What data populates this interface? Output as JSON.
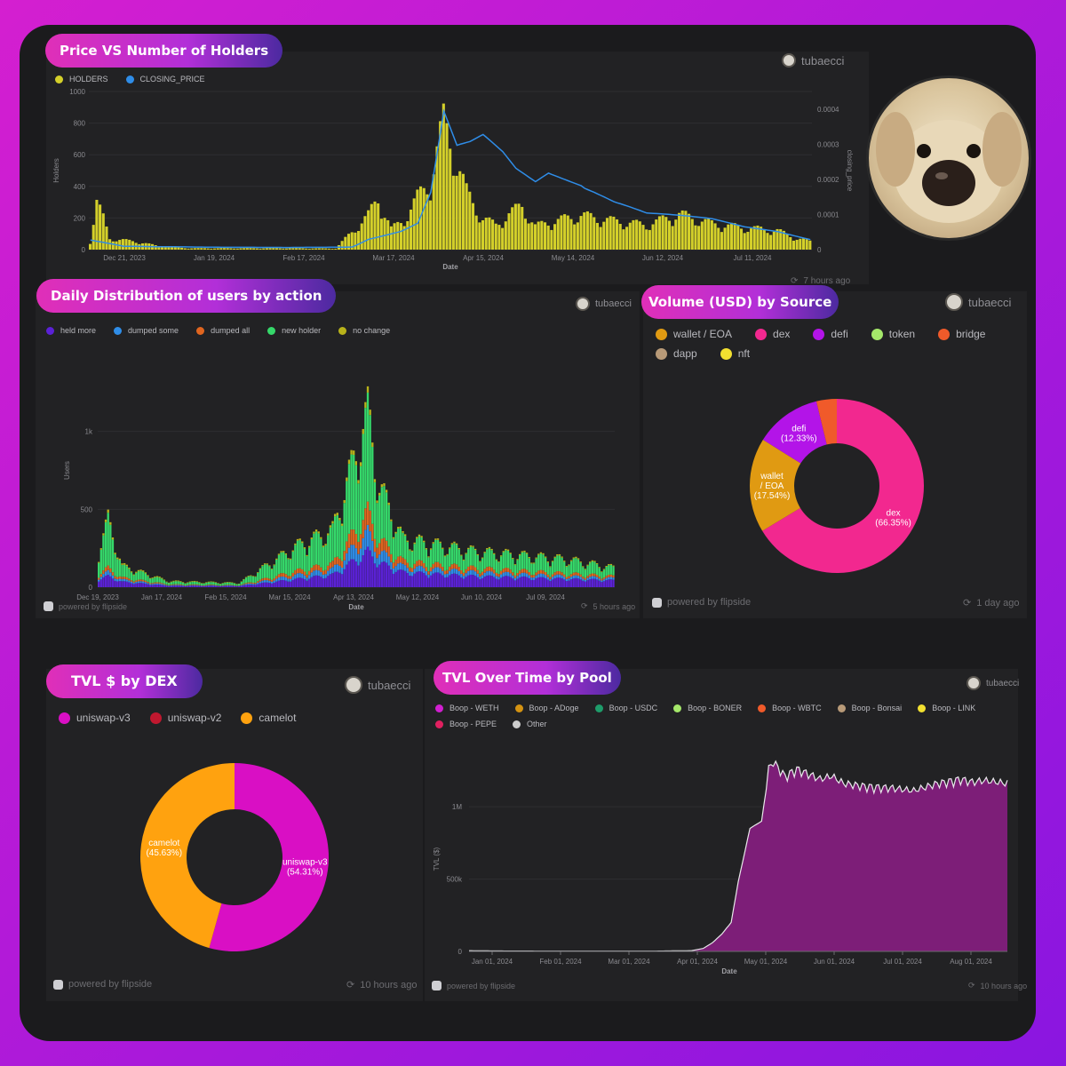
{
  "colors": {
    "holders": "#d4d02a",
    "closing_price": "#2f8de8",
    "held_more": "#5b21d6",
    "dumped_some": "#2f8de8",
    "dumped_all": "#e0651f",
    "new_holder": "#35d86a",
    "no_change": "#b8b21a",
    "tvl_area": "#7d1e78"
  },
  "panel1": {
    "title": "Price VS Number of Holders",
    "user": "tubaecci",
    "legend": [
      {
        "label": "HOLDERS",
        "color": "#d4d02a"
      },
      {
        "label": "CLOSING_PRICE",
        "color": "#2f8de8"
      }
    ],
    "footer_time": "7 hours ago"
  },
  "panel2": {
    "title": "Daily Distribution of users by action",
    "user": "tubaecci",
    "legend": [
      {
        "label": "held more",
        "color": "#5b21d6"
      },
      {
        "label": "dumped some",
        "color": "#2f8de8"
      },
      {
        "label": "dumped all",
        "color": "#e0651f"
      },
      {
        "label": "new holder",
        "color": "#35d86a"
      },
      {
        "label": "no change",
        "color": "#b8b21a"
      }
    ],
    "footer_brand": "powered by flipside",
    "footer_time": "5 hours ago"
  },
  "panel3": {
    "title": "Volume (USD) by Source",
    "user": "tubaecci",
    "legend": [
      {
        "label": "wallet / EOA",
        "color": "#e09a12"
      },
      {
        "label": "dex",
        "color": "#f2288f"
      },
      {
        "label": "defi",
        "color": "#b314e8"
      },
      {
        "label": "token",
        "color": "#a5e86a"
      },
      {
        "label": "bridge",
        "color": "#f05a2a"
      },
      {
        "label": "dapp",
        "color": "#b89a78"
      },
      {
        "label": "nft",
        "color": "#f2e030"
      }
    ],
    "footer_brand": "powered by flipside",
    "footer_time": "1 day ago"
  },
  "panel4": {
    "title": "TVL $ by DEX",
    "user": "tubaecci",
    "legend": [
      {
        "label": "uniswap-v3",
        "color": "#d90fc4"
      },
      {
        "label": "uniswap-v2",
        "color": "#c0182f"
      },
      {
        "label": "camelot",
        "color": "#ffa20f"
      }
    ],
    "footer_brand": "powered by flipside",
    "footer_time": "10 hours ago"
  },
  "panel5": {
    "title": "TVL Over Time by Pool",
    "user": "tubaecci",
    "legend": [
      {
        "label": "Boop - WETH",
        "color": "#d11fd0"
      },
      {
        "label": "Boop - ADoge",
        "color": "#d49312"
      },
      {
        "label": "Boop - USDC",
        "color": "#1e9c6a"
      },
      {
        "label": "Boop - BONER",
        "color": "#a5e86a"
      },
      {
        "label": "Boop - WBTC",
        "color": "#f05a2a"
      },
      {
        "label": "Boop - Bonsai",
        "color": "#b89a78"
      },
      {
        "label": "Boop - LINK",
        "color": "#f2e030"
      },
      {
        "label": "Boop - PEPE",
        "color": "#e02060"
      },
      {
        "label": "Other",
        "color": "#cccccc"
      }
    ],
    "footer_brand": "powered by flipside",
    "footer_time": "10 hours ago"
  },
  "chart_data": [
    {
      "type": "bar",
      "xlabel": "Date",
      "ylabel": "Holders",
      "y2label": "closing_price",
      "ylim": [
        0,
        1000
      ],
      "y2lim": [
        0,
        0.00045
      ],
      "y_ticks": [
        "0",
        "200",
        "400",
        "600",
        "800",
        "1000"
      ],
      "y2_ticks": [
        "0",
        "0.0001",
        "0.0002",
        "0.0003",
        "0.0004"
      ],
      "x_ticks": [
        "Dec 21, 2023",
        "Jan 19, 2024",
        "Feb 17, 2024",
        "Mar 17, 2024",
        "Apr 15, 2024",
        "May 14, 2024",
        "Jun 12, 2024",
        "Jul 11, 2024"
      ],
      "series": [
        {
          "name": "HOLDERS",
          "x": [
            0,
            2,
            4,
            6,
            10,
            15,
            20,
            30,
            45,
            60,
            75,
            85,
            88,
            92,
            96,
            100,
            104,
            108,
            112,
            115,
            118,
            120,
            124,
            128,
            132,
            136,
            140,
            150,
            160,
            170,
            180,
            190,
            200,
            210,
            215,
            220
          ],
          "values": [
            60,
            350,
            230,
            80,
            70,
            55,
            30,
            10,
            10,
            10,
            8,
            250,
            380,
            150,
            220,
            380,
            500,
            930,
            650,
            420,
            300,
            230,
            180,
            260,
            320,
            170,
            200,
            250,
            210,
            180,
            260,
            190,
            160,
            140,
            90,
            60
          ]
        },
        {
          "name": "CLOSING_PRICE",
          "x": [
            0,
            5,
            10,
            20,
            40,
            60,
            80,
            85,
            90,
            95,
            100,
            104,
            108,
            112,
            116,
            120,
            126,
            130,
            136,
            140,
            150,
            160,
            170,
            180,
            190,
            200,
            210,
            220
          ],
          "values": [
            3e-05,
            2e-05,
            1e-05,
            8e-06,
            6e-06,
            6e-06,
            8e-06,
            3e-05,
            4e-05,
            5e-05,
            7e-05,
            0.00015,
            0.00036,
            0.00027,
            0.00028,
            0.0003,
            0.00026,
            0.00022,
            0.00019,
            0.00022,
            0.0002,
            0.00014,
            0.0001,
            9e-05,
            8e-05,
            6e-05,
            5e-05,
            3e-05
          ]
        }
      ]
    },
    {
      "type": "bar",
      "xlabel": "Date",
      "ylabel": "Users",
      "ylim": [
        0,
        1500
      ],
      "y_ticks": [
        "0",
        "500",
        "1k"
      ],
      "x_ticks": [
        "Dec 19, 2023",
        "Jan 17, 2024",
        "Feb 15, 2024",
        "Mar 15, 2024",
        "Apr 13, 2024",
        "May 12, 2024",
        "Jun 10, 2024",
        "Jul 09, 2024"
      ],
      "series": [
        {
          "name": "held more",
          "x": [
            0,
            4,
            10,
            30,
            60,
            85,
            100,
            115,
            120,
            130,
            140,
            160,
            180,
            200,
            220
          ],
          "values": [
            60,
            80,
            40,
            10,
            8,
            60,
            90,
            260,
            180,
            110,
            100,
            80,
            70,
            60,
            50
          ]
        },
        {
          "name": "dumped some",
          "x": [
            0,
            4,
            10,
            30,
            60,
            85,
            100,
            115,
            120,
            130,
            140,
            160,
            180,
            200,
            220
          ],
          "values": [
            20,
            30,
            15,
            5,
            3,
            30,
            40,
            140,
            80,
            40,
            35,
            30,
            25,
            20,
            15
          ]
        },
        {
          "name": "dumped all",
          "x": [
            0,
            4,
            10,
            30,
            60,
            85,
            100,
            115,
            120,
            130,
            140,
            160,
            180,
            200,
            220
          ],
          "values": [
            20,
            30,
            15,
            5,
            3,
            30,
            40,
            150,
            90,
            40,
            35,
            30,
            25,
            20,
            15
          ]
        },
        {
          "name": "new holder",
          "x": [
            0,
            4,
            10,
            30,
            60,
            85,
            100,
            115,
            120,
            130,
            140,
            160,
            180,
            200,
            220
          ],
          "values": [
            160,
            340,
            80,
            20,
            15,
            180,
            240,
            700,
            380,
            160,
            150,
            120,
            110,
            100,
            60
          ]
        },
        {
          "name": "no change",
          "x": [
            0,
            4,
            10,
            30,
            60,
            85,
            100,
            115,
            120,
            130,
            140,
            160,
            180,
            200,
            220
          ],
          "values": [
            10,
            20,
            10,
            5,
            3,
            10,
            15,
            40,
            20,
            10,
            10,
            8,
            8,
            8,
            6
          ]
        }
      ]
    },
    {
      "type": "pie",
      "labels": [
        "dex",
        "wallet / EOA",
        "defi",
        "bridge"
      ],
      "values": [
        66.35,
        17.54,
        12.33,
        3.78
      ],
      "colors": [
        "#f2288f",
        "#e09a12",
        "#b314e8",
        "#f05a2a"
      ],
      "slice_labels": [
        [
          "dex",
          "(66.35%)"
        ],
        [
          "wallet",
          "/ EOA",
          "(17.54%)"
        ],
        [
          "defi",
          "(12.33%)"
        ],
        [
          ""
        ]
      ]
    },
    {
      "type": "pie",
      "labels": [
        "uniswap-v3",
        "camelot"
      ],
      "values": [
        54.31,
        45.63
      ],
      "colors": [
        "#d90fc4",
        "#ffa20f"
      ],
      "slice_labels": [
        [
          "uniswap-v3",
          "(54.31%)"
        ],
        [
          "camelot",
          "(45.63%)"
        ]
      ]
    },
    {
      "type": "area",
      "xlabel": "Date",
      "ylabel": "TVL ($)",
      "ylim": [
        0,
        1400000
      ],
      "y_ticks": [
        "0",
        "500k",
        "1M"
      ],
      "x_ticks": [
        "Jan 01, 2024",
        "Feb 01, 2024",
        "Mar 01, 2024",
        "Apr 01, 2024",
        "May 01, 2024",
        "Jun 01, 2024",
        "Jul 01, 2024",
        "Aug 01, 2024"
      ],
      "x": [
        0,
        10,
        30,
        60,
        80,
        95,
        100,
        104,
        108,
        112,
        115,
        118,
        120,
        122,
        125,
        128,
        130,
        135,
        140,
        150,
        155,
        160,
        170,
        180,
        190,
        200,
        210,
        215,
        220,
        225,
        230
      ],
      "values": [
        5000,
        3000,
        2000,
        2000,
        2000,
        5000,
        20000,
        60000,
        120000,
        200000,
        480000,
        700000,
        850000,
        870000,
        900000,
        1250000,
        1300000,
        1200000,
        1250000,
        1180000,
        1200000,
        1150000,
        1130000,
        1120000,
        1100000,
        1150000,
        1180000,
        1160000,
        1170000,
        1160000,
        1150000
      ]
    }
  ]
}
